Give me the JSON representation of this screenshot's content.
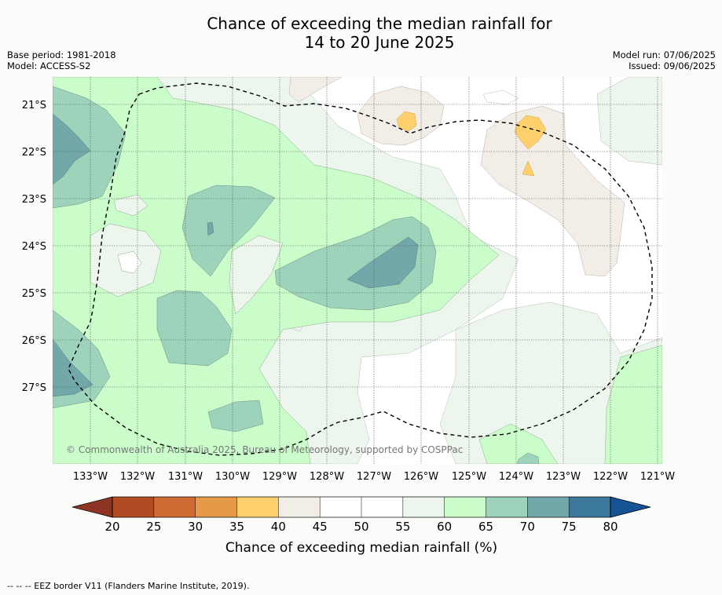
{
  "header": {
    "title_line1": "Chance of exceeding the median rainfall for",
    "title_line2": "14 to 20 June 2025",
    "base_period": "Base period: 1981-2018",
    "model": "Model: ACCESS-S2",
    "model_run": "Model run: 07/06/2025",
    "issued": "Issued: 09/06/2025"
  },
  "map": {
    "lat_labels": [
      "21°S",
      "22°S",
      "23°S",
      "24°S",
      "25°S",
      "26°S",
      "27°S"
    ],
    "lon_labels": [
      "133°W",
      "132°W",
      "131°W",
      "130°W",
      "129°W",
      "128°W",
      "127°W",
      "126°W",
      "125°W",
      "124°W",
      "123°W",
      "122°W",
      "121°W"
    ],
    "copyright": "© Commonwealth of Australia 2025, Bureau of Meteorology, supported by COSPPac"
  },
  "colorbar": {
    "ticks": [
      "20",
      "25",
      "30",
      "35",
      "40",
      "45",
      "50",
      "55",
      "60",
      "65",
      "70",
      "75",
      "80"
    ],
    "colors": [
      "#b24a24",
      "#d06a35",
      "#e49a48",
      "#fdd06c",
      "#f3ede7",
      "#ffffff",
      "#ffffff",
      "#edf6ec",
      "#cbfdcb",
      "#9dd3bb",
      "#72a8aa",
      "#3c799c"
    ],
    "under_color": "#8d3522",
    "over_color": "#165394",
    "label": "Chance of exceeding median rainfall (%)"
  },
  "footer": {
    "legend": "-- -- -- EEZ border V11 (Flanders Marine Institute, 2019)."
  }
}
